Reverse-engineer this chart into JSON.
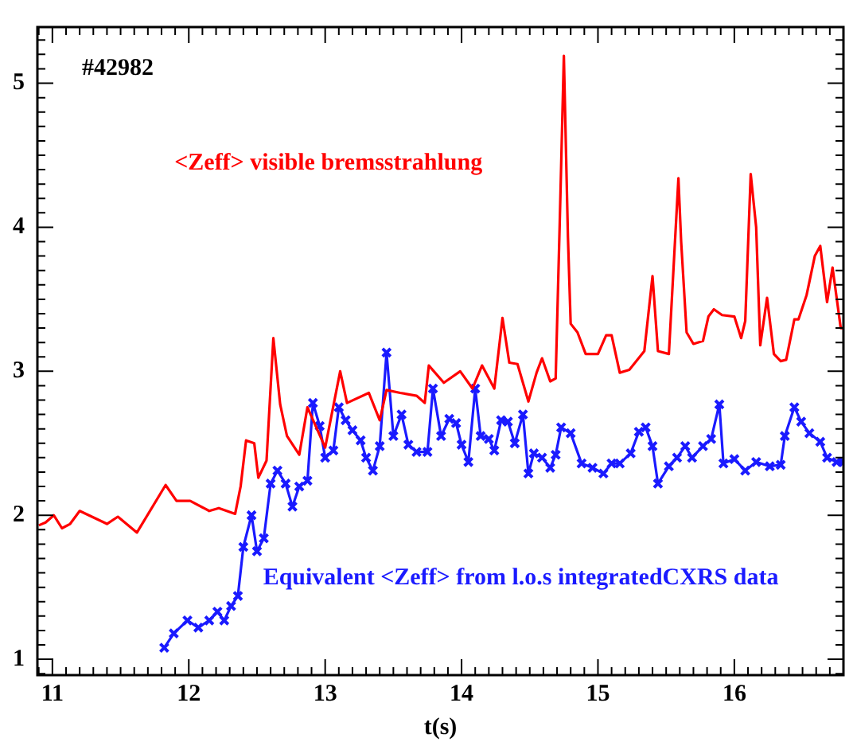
{
  "chart_data": {
    "type": "line",
    "xlabel": "t(s)",
    "annotations": [
      "#42982"
    ],
    "xlim": [
      10.89,
      16.8
    ],
    "xticks": [
      11,
      12,
      13,
      14,
      15,
      16
    ],
    "ylim": [
      0.89,
      5.39
    ],
    "yticks": [
      1,
      2,
      3,
      4,
      5
    ],
    "grid": false,
    "legend": false,
    "series": [
      {
        "name": "<Zeff> visible bremsstrahlung",
        "color": "#ff0000",
        "marker": "none",
        "x": [
          10.9,
          10.95,
          11.01,
          11.07,
          11.13,
          11.2,
          11.4,
          11.48,
          11.62,
          11.83,
          11.91,
          12.01,
          12.15,
          12.22,
          12.34,
          12.38,
          12.42,
          12.48,
          12.51,
          12.57,
          12.62,
          12.67,
          12.72,
          12.81,
          12.87,
          13.0,
          13.11,
          13.16,
          13.32,
          13.4,
          13.45,
          13.55,
          13.67,
          13.73,
          13.76,
          13.87,
          13.99,
          14.08,
          14.15,
          14.24,
          14.3,
          14.35,
          14.41,
          14.49,
          14.55,
          14.59,
          14.65,
          14.69,
          14.72,
          14.75,
          14.78,
          14.8,
          14.85,
          14.91,
          15.0,
          15.06,
          15.1,
          15.16,
          15.23,
          15.34,
          15.4,
          15.44,
          15.52,
          15.59,
          15.61,
          15.65,
          15.7,
          15.77,
          15.81,
          15.85,
          15.91,
          16.0,
          16.05,
          16.08,
          16.12,
          16.16,
          16.19,
          16.24,
          16.29,
          16.34,
          16.38,
          16.44,
          16.47,
          16.53,
          16.59,
          16.63,
          16.68,
          16.72,
          16.78,
          16.8
        ],
        "values": [
          1.93,
          1.95,
          2.0,
          1.91,
          1.94,
          2.03,
          1.94,
          1.99,
          1.88,
          2.21,
          2.1,
          2.1,
          2.03,
          2.05,
          2.01,
          2.2,
          2.52,
          2.5,
          2.26,
          2.38,
          3.23,
          2.77,
          2.55,
          2.42,
          2.75,
          2.47,
          3.0,
          2.78,
          2.85,
          2.66,
          2.87,
          2.85,
          2.83,
          2.78,
          3.04,
          2.92,
          3.0,
          2.88,
          3.04,
          2.88,
          3.37,
          3.06,
          3.05,
          2.79,
          2.99,
          3.09,
          2.93,
          2.95,
          4.04,
          5.19,
          3.93,
          3.33,
          3.27,
          3.12,
          3.12,
          3.25,
          3.25,
          2.99,
          3.01,
          3.14,
          3.66,
          3.14,
          3.12,
          4.34,
          3.9,
          3.27,
          3.19,
          3.21,
          3.38,
          3.43,
          3.39,
          3.38,
          3.23,
          3.35,
          4.37,
          4.0,
          3.18,
          3.51,
          3.12,
          3.07,
          3.08,
          3.36,
          3.36,
          3.53,
          3.8,
          3.87,
          3.48,
          3.72,
          3.3,
          3.3
        ]
      },
      {
        "name": "Equivalent <Zeff> from l.o.s integratedCXRS data",
        "color": "#1a1aff",
        "marker": "cross",
        "x": [
          11.82,
          11.89,
          11.99,
          12.07,
          12.15,
          12.21,
          12.26,
          12.31,
          12.36,
          12.4,
          12.46,
          12.5,
          12.55,
          12.6,
          12.65,
          12.71,
          12.76,
          12.81,
          12.87,
          12.91,
          12.96,
          13.0,
          13.06,
          13.1,
          13.15,
          13.2,
          13.26,
          13.3,
          13.35,
          13.4,
          13.45,
          13.5,
          13.56,
          13.61,
          13.67,
          13.75,
          13.79,
          13.85,
          13.91,
          13.96,
          14.0,
          14.05,
          14.1,
          14.14,
          14.2,
          14.24,
          14.29,
          14.34,
          14.39,
          14.45,
          14.49,
          14.53,
          14.59,
          14.65,
          14.69,
          14.73,
          14.8,
          14.88,
          14.96,
          15.04,
          15.1,
          15.16,
          15.24,
          15.3,
          15.35,
          15.4,
          15.44,
          15.52,
          15.58,
          15.64,
          15.69,
          15.77,
          15.83,
          15.89,
          15.92,
          16.0,
          16.08,
          16.16,
          16.26,
          16.34,
          16.37,
          16.44,
          16.49,
          16.55,
          16.63,
          16.68,
          16.75,
          16.8
        ],
        "values": [
          1.08,
          1.18,
          1.27,
          1.22,
          1.27,
          1.33,
          1.27,
          1.37,
          1.44,
          1.78,
          2.0,
          1.75,
          1.84,
          2.22,
          2.31,
          2.22,
          2.06,
          2.2,
          2.24,
          2.78,
          2.62,
          2.4,
          2.45,
          2.75,
          2.66,
          2.59,
          2.52,
          2.4,
          2.31,
          2.48,
          3.13,
          2.55,
          2.7,
          2.49,
          2.44,
          2.44,
          2.88,
          2.55,
          2.67,
          2.64,
          2.49,
          2.37,
          2.88,
          2.55,
          2.53,
          2.45,
          2.66,
          2.65,
          2.5,
          2.7,
          2.29,
          2.43,
          2.4,
          2.33,
          2.42,
          2.61,
          2.57,
          2.36,
          2.33,
          2.29,
          2.36,
          2.36,
          2.43,
          2.58,
          2.61,
          2.48,
          2.22,
          2.34,
          2.4,
          2.48,
          2.4,
          2.48,
          2.53,
          2.77,
          2.36,
          2.39,
          2.31,
          2.37,
          2.34,
          2.35,
          2.55,
          2.75,
          2.65,
          2.57,
          2.51,
          2.4,
          2.37,
          2.37
        ]
      }
    ]
  }
}
